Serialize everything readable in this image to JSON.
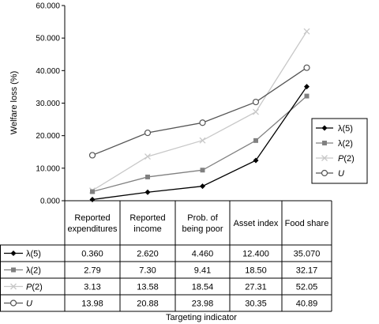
{
  "chart_data": {
    "type": "line",
    "ylabel": "Welfare loss (%)",
    "xlabel": "Targeting indicator",
    "ylim": [
      0,
      60
    ],
    "y_ticks": [
      "0.000",
      "10.000",
      "20.000",
      "30.000",
      "40.000",
      "50.000",
      "60.000"
    ],
    "y_tick_values": [
      0,
      10,
      20,
      30,
      40,
      50,
      60
    ],
    "grid": false,
    "legend_position": "right",
    "categories": [
      [
        "Reported",
        "expenditures"
      ],
      [
        "Reported",
        "income"
      ],
      [
        "Prob. of",
        "being poor"
      ],
      [
        "Asset index"
      ],
      [
        "Food share"
      ]
    ],
    "series": [
      {
        "name": "λ(5)",
        "label_main": "λ(5)",
        "label_italic": "",
        "color": "#000000",
        "marker": "diamond",
        "values": [
          0.36,
          2.62,
          4.46,
          12.4,
          35.07
        ],
        "table_values": [
          "0.360",
          "2.620",
          "4.460",
          "12.400",
          "35.070"
        ]
      },
      {
        "name": "λ(2)",
        "label_main": "λ(2)",
        "label_italic": "",
        "color": "#808080",
        "marker": "square",
        "values": [
          2.79,
          7.3,
          9.41,
          18.5,
          32.17
        ],
        "table_values": [
          "2.79",
          "7.30",
          "9.41",
          "18.50",
          "32.17"
        ]
      },
      {
        "name": "P(2)",
        "label_main": "(2)",
        "label_italic": "P",
        "color": "#c8c8c8",
        "marker": "x",
        "values": [
          3.13,
          13.58,
          18.54,
          27.31,
          52.05
        ],
        "table_values": [
          "3.13",
          "13.58",
          "18.54",
          "27.31",
          "52.05"
        ]
      },
      {
        "name": "U",
        "label_main": "",
        "label_italic": "U",
        "color": "#555555",
        "marker": "circle",
        "values": [
          13.98,
          20.88,
          23.98,
          30.35,
          40.89
        ],
        "table_values": [
          "13.98",
          "20.88",
          "23.98",
          "30.35",
          "40.89"
        ]
      }
    ]
  }
}
